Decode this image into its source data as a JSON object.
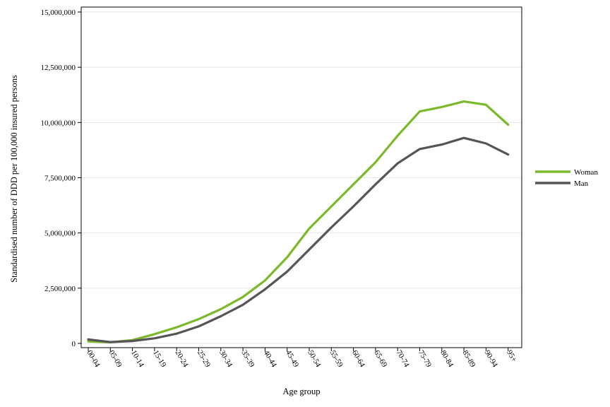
{
  "chart_data": {
    "type": "line",
    "title": "",
    "xlabel": "Age group",
    "ylabel": "Standardised number of DDD per 100,000 insured persons",
    "ylim": [
      0,
      15000000
    ],
    "yticks": [
      0,
      2500000,
      5000000,
      7500000,
      10000000,
      12500000,
      15000000
    ],
    "ytick_labels": [
      "0",
      "2,500,000",
      "5,000,000",
      "7,500,000",
      "10,000,000",
      "12,500,000",
      "15,000,000"
    ],
    "categories": [
      "00-04",
      "05-09",
      "10-14",
      "15-19",
      "20-24",
      "25-29",
      "30-34",
      "35-39",
      "40-44",
      "45-49",
      "50-54",
      "55-59",
      "60-64",
      "65-69",
      "70-74",
      "75-79",
      "80-84",
      "85-89",
      "90-94",
      "95+"
    ],
    "series": [
      {
        "name": "Woman",
        "color": "#7ab929",
        "values": [
          90000,
          50000,
          150000,
          420000,
          730000,
          1100000,
          1550000,
          2100000,
          2850000,
          3900000,
          5200000,
          6200000,
          7200000,
          8200000,
          9400000,
          10500000,
          10700000,
          10950000,
          10800000,
          9900000
        ]
      },
      {
        "name": "Man",
        "color": "#555555",
        "values": [
          180000,
          60000,
          110000,
          230000,
          440000,
          770000,
          1230000,
          1750000,
          2450000,
          3250000,
          4250000,
          5250000,
          6200000,
          7200000,
          8150000,
          8800000,
          9000000,
          9300000,
          9050000,
          8550000
        ]
      }
    ],
    "grid": true,
    "legend": "right"
  }
}
